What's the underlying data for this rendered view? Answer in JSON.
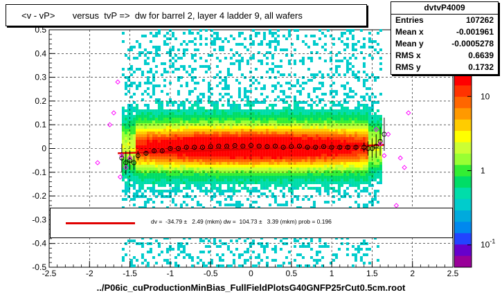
{
  "title": "<v - vP>       versus  tvP =>  dw for barrel 2, layer 4 ladder 9, all wafers",
  "stats": {
    "name": "dvtvP4009",
    "rows": [
      {
        "label": "Entries",
        "value": "107262"
      },
      {
        "label": "Mean x",
        "value": "-0.001961"
      },
      {
        "label": "Mean y",
        "value": "-0.0005278"
      },
      {
        "label": "RMS x",
        "value": "0.6639"
      },
      {
        "label": "RMS y",
        "value": "0.1732"
      }
    ]
  },
  "legend": {
    "text": "dv =  -34.79 ±   2.49 (mkm) dw =  104.73 ±   3.39 (mkm) prob = 0.196",
    "line_color": "#e00000"
  },
  "xaxis_title": "../P06ic_cuProductionMinBias_FullFieldPlotsG40GNFP25rCut0.5cm.root",
  "chart_data": {
    "type": "heatmap",
    "title": "<v - vP>       versus  tvP =>  dw for barrel 2, layer 4 ladder 9, all wafers",
    "xlabel": "../P06ic_cuProductionMinBias_FullFieldPlotsG40GNFP25rCut0.5cm.root",
    "ylabel": "",
    "xlim": [
      -2.5,
      2.5
    ],
    "ylim": [
      -0.5,
      0.5
    ],
    "x_ticks": [
      "-2.5",
      "-2",
      "-1.5",
      "-1",
      "-0.5",
      "0",
      "0.5",
      "1",
      "1.5",
      "2",
      "2.5"
    ],
    "y_ticks": [
      "-0.5",
      "-0.4",
      "-0.3",
      "-0.2",
      "-0.1",
      "0",
      "0.1",
      "0.2",
      "0.3",
      "0.4",
      "0.5"
    ],
    "z_scale": "log",
    "z_ticks": [
      {
        "label": "10",
        "value": 10
      },
      {
        "label": "1",
        "value": 1
      },
      {
        "label": "10",
        "sup": "-1",
        "value": 0.1
      }
    ],
    "grid": true,
    "palette": [
      "#ff0000",
      "#ff3300",
      "#ff6600",
      "#ff9900",
      "#ffcc00",
      "#ffff00",
      "#ccff33",
      "#99ff33",
      "#33ee33",
      "#00dd66",
      "#00ddaa",
      "#00cccc",
      "#00aadd",
      "#0088ee",
      "#2244ff",
      "#6600cc",
      "#990099"
    ],
    "profile_color": "#000000",
    "points_color": "#ff00ff",
    "fit_color": "#e00000",
    "profile": {
      "x": [
        -1.6,
        -1.55,
        -1.5,
        -1.45,
        -1.4,
        -1.3,
        -1.2,
        -1.1,
        -1.0,
        -0.9,
        -0.8,
        -0.7,
        -0.6,
        -0.5,
        -0.4,
        -0.3,
        -0.2,
        -0.1,
        0.0,
        0.1,
        0.2,
        0.3,
        0.4,
        0.5,
        0.6,
        0.7,
        0.8,
        0.9,
        1.0,
        1.1,
        1.2,
        1.3,
        1.4,
        1.45,
        1.5,
        1.55,
        1.6,
        1.65
      ],
      "y": [
        -0.04,
        -0.06,
        -0.05,
        -0.06,
        -0.03,
        -0.02,
        -0.01,
        -0.01,
        0.0,
        0.0,
        0.005,
        0.005,
        0.005,
        0.008,
        0.01,
        0.01,
        0.012,
        0.01,
        0.012,
        0.01,
        0.008,
        0.01,
        0.005,
        0.008,
        0.01,
        0.005,
        0.005,
        0.008,
        0.005,
        0.005,
        0.005,
        0.005,
        0.005,
        0.0,
        0.0,
        0.01,
        0.03,
        0.06
      ],
      "err": [
        0.06,
        0.05,
        0.04,
        0.03,
        0.02,
        0.01,
        0.006,
        0.005,
        0.004,
        0.003,
        0.003,
        0.003,
        0.003,
        0.003,
        0.003,
        0.003,
        0.003,
        0.003,
        0.003,
        0.003,
        0.003,
        0.003,
        0.003,
        0.003,
        0.003,
        0.003,
        0.003,
        0.004,
        0.005,
        0.006,
        0.008,
        0.01,
        0.02,
        0.03,
        0.04,
        0.05,
        0.06,
        0.07
      ]
    },
    "points": {
      "x": [
        -1.9,
        -1.75,
        -1.7,
        -1.65,
        -1.62,
        -1.6,
        -1.55,
        -1.5,
        1.55,
        1.6,
        1.65,
        1.7,
        1.8,
        1.85,
        1.9,
        1.95
      ],
      "y": [
        -0.06,
        0.1,
        0.15,
        0.28,
        -0.12,
        -0.03,
        -0.08,
        -0.04,
        0.08,
        0.02,
        -0.03,
        0.06,
        -0.24,
        -0.04,
        -0.08,
        0.15
      ]
    },
    "fit": {
      "x": [
        -1.65,
        1.65
      ],
      "y": [
        -0.02,
        0.015
      ]
    }
  }
}
